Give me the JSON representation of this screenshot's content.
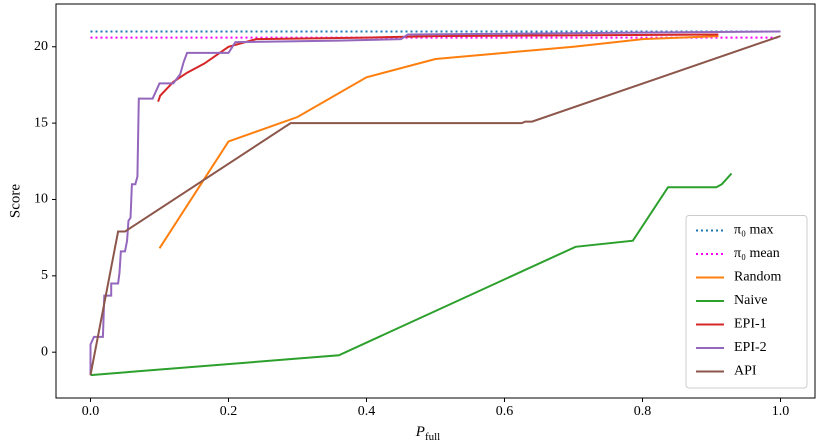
{
  "chart_data": {
    "type": "line",
    "xlabel": {
      "base": "P",
      "subscript": "full"
    },
    "ylabel": "Score",
    "xlim": [
      -0.05,
      1.05
    ],
    "ylim": [
      -3,
      22.8
    ],
    "xticks": [
      {
        "value": 0,
        "label": "0.0"
      },
      0.2,
      0.4,
      0.6,
      0.8,
      {
        "value": 1,
        "label": "1.0"
      }
    ],
    "yticks": [
      0,
      5,
      10,
      15,
      20
    ],
    "legend": "lower right",
    "series": [
      {
        "name": "π₀ max",
        "color": "#1f77b4",
        "dash": "dotted",
        "x": [
          0,
          1
        ],
        "values": [
          21.0,
          21.0
        ]
      },
      {
        "name": "π₀ mean",
        "color": "#ff00ff",
        "dash": "dotted",
        "x": [
          0,
          1
        ],
        "values": [
          20.6,
          20.6
        ]
      },
      {
        "name": "Random",
        "color": "#ff7f0e",
        "dash": "solid",
        "x": [
          0.1,
          0.2,
          0.3,
          0.4,
          0.5,
          0.6,
          0.7,
          0.8,
          0.91
        ],
        "values": [
          6.8,
          13.8,
          15.4,
          18.0,
          19.2,
          19.6,
          20.0,
          20.5,
          20.7
        ]
      },
      {
        "name": "Naive",
        "color": "#2ca02c",
        "dash": "solid",
        "x": [
          0,
          0.36,
          0.703,
          0.786,
          0.837,
          0.907,
          0.915,
          0.929
        ],
        "values": [
          -1.5,
          -0.2,
          6.9,
          7.3,
          10.8,
          10.8,
          11.0,
          11.7
        ]
      },
      {
        "name": "EPI-1",
        "color": "#d62728",
        "dash": "solid",
        "x": [
          0.098,
          0.101,
          0.12,
          0.14,
          0.165,
          0.2,
          0.24,
          0.4,
          0.5,
          0.91
        ],
        "values": [
          16.4,
          16.8,
          17.7,
          18.3,
          18.9,
          20.0,
          20.5,
          20.6,
          20.7,
          20.8
        ]
      },
      {
        "name": "EPI-2",
        "color": "#9467bd",
        "dash": "solid",
        "x": [
          0,
          0,
          0.005,
          0.018,
          0.02,
          0.03,
          0.03,
          0.04,
          0.042,
          0.044,
          0.05,
          0.053,
          0.055,
          0.058,
          0.06,
          0.065,
          0.068,
          0.07,
          0.09,
          0.1,
          0.12,
          0.13,
          0.135,
          0.14,
          0.2,
          0.21,
          0.36,
          0.45,
          0.46,
          1.0
        ],
        "values": [
          -1.5,
          0.5,
          1.0,
          1.0,
          3.7,
          3.7,
          4.5,
          4.5,
          5.2,
          6.6,
          6.6,
          7.3,
          8.6,
          8.8,
          11.0,
          11.0,
          11.5,
          16.6,
          16.6,
          17.6,
          17.6,
          18.2,
          19.0,
          19.6,
          19.6,
          20.3,
          20.4,
          20.5,
          20.8,
          21.0
        ]
      },
      {
        "name": "API",
        "color": "#8c564b",
        "dash": "solid",
        "x": [
          0,
          0.04,
          0.05,
          0.29,
          0.625,
          0.63,
          0.64,
          1.0
        ],
        "values": [
          -1.5,
          7.9,
          7.9,
          15.0,
          15.0,
          15.1,
          15.1,
          20.7
        ]
      }
    ]
  }
}
